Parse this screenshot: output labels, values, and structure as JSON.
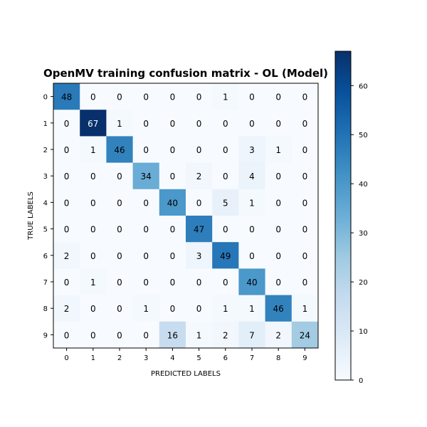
{
  "chart_data": {
    "type": "heatmap",
    "title": "OpenMV training confusion matrix - OL (Model)",
    "xlabel": "PREDICTED LABELS",
    "ylabel": "TRUE LABELS",
    "x_categories": [
      "0",
      "1",
      "2",
      "3",
      "4",
      "5",
      "6",
      "7",
      "8",
      "9"
    ],
    "y_categories": [
      "0",
      "1",
      "2",
      "3",
      "4",
      "5",
      "6",
      "7",
      "8",
      "9"
    ],
    "matrix": [
      [
        48,
        0,
        0,
        0,
        0,
        0,
        1,
        0,
        0,
        0
      ],
      [
        0,
        67,
        1,
        0,
        0,
        0,
        0,
        0,
        0,
        0
      ],
      [
        0,
        1,
        46,
        0,
        0,
        0,
        0,
        3,
        1,
        0
      ],
      [
        0,
        0,
        0,
        34,
        0,
        2,
        0,
        4,
        0,
        0
      ],
      [
        0,
        0,
        0,
        0,
        40,
        0,
        5,
        1,
        0,
        0
      ],
      [
        0,
        0,
        0,
        0,
        0,
        47,
        0,
        0,
        0,
        0
      ],
      [
        2,
        0,
        0,
        0,
        0,
        3,
        49,
        0,
        0,
        0
      ],
      [
        0,
        1,
        0,
        0,
        0,
        0,
        0,
        40,
        0,
        0
      ],
      [
        2,
        0,
        0,
        1,
        0,
        0,
        1,
        1,
        46,
        1
      ],
      [
        0,
        0,
        0,
        0,
        16,
        1,
        2,
        7,
        2,
        24
      ]
    ],
    "colormap": "Blues",
    "colorbar": {
      "min": 0,
      "max": 67,
      "ticks": [
        "0",
        "10",
        "20",
        "30",
        "40",
        "50",
        "60"
      ]
    }
  }
}
